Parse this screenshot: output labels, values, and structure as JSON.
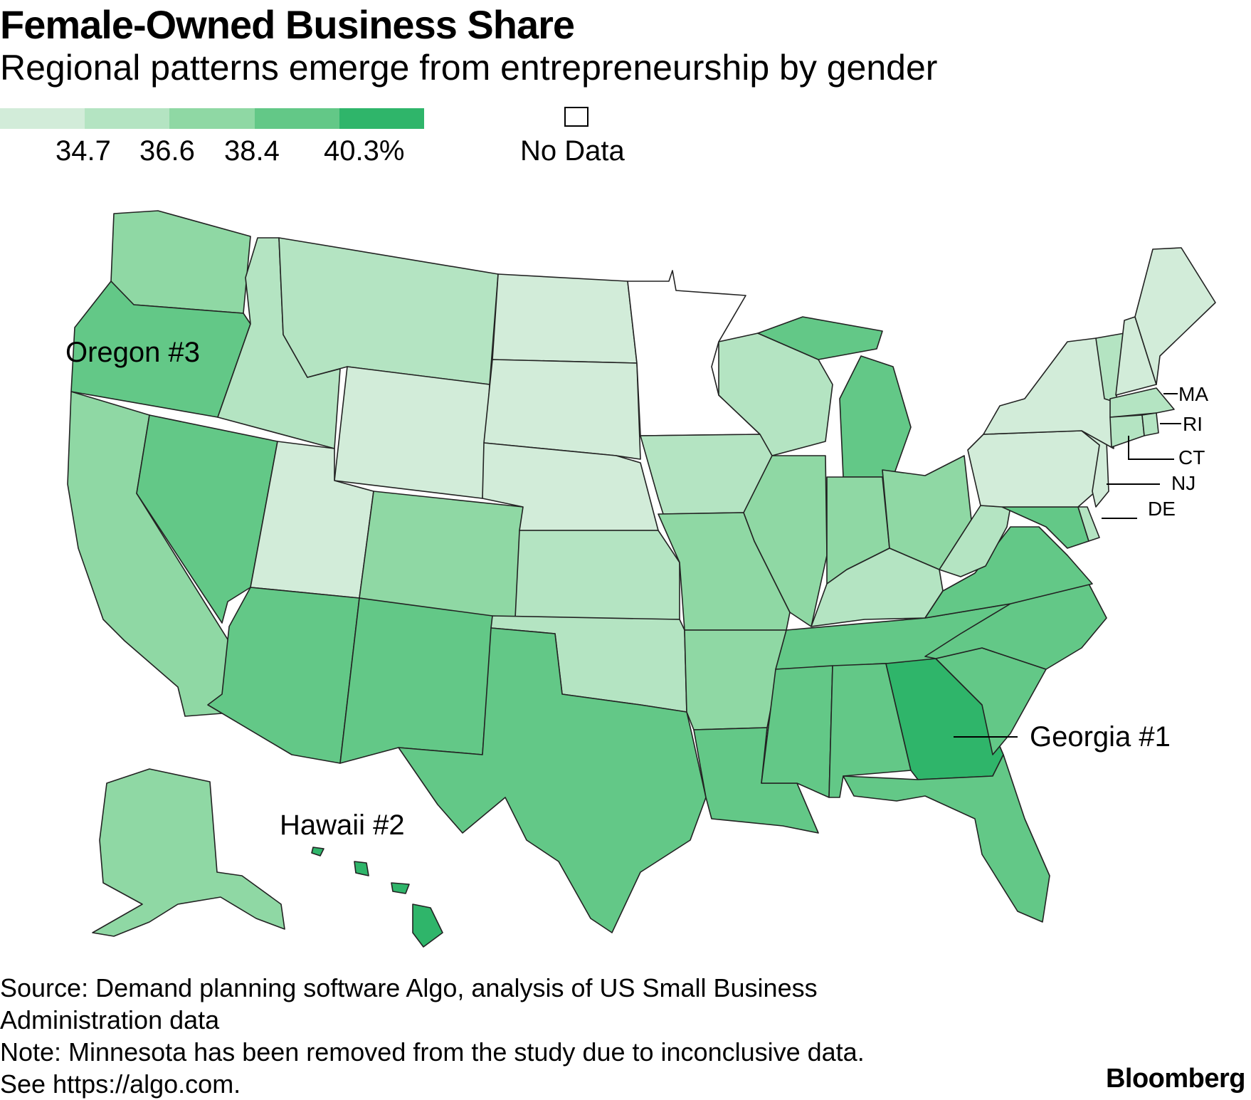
{
  "header": {
    "title": "Female-Owned Business Share",
    "subtitle": "Regional patterns emerge from entrepreneurship by gender"
  },
  "legend": {
    "colors": [
      "#d2ecd9",
      "#b4e4c2",
      "#8fd8a4",
      "#63c887",
      "#2fb56a"
    ],
    "labels": [
      "34.7",
      "36.6",
      "38.4",
      "40.3%"
    ],
    "no_data_label": "No Data",
    "no_data_color": "#ffffff"
  },
  "callouts": {
    "oregon": "Oregon #3",
    "hawaii": "Hawaii #2",
    "georgia": "Georgia #1",
    "ma": "MA",
    "ri": "RI",
    "ct": "CT",
    "nj": "NJ",
    "de": "DE"
  },
  "footer": {
    "source_line1": "Source: Demand planning software Algo, analysis of US Small Business",
    "source_line2": "Administration data",
    "note_line1": "Note: Minnesota has been removed from the study due to inconclusive data.",
    "note_line2": "See https://algo.com."
  },
  "brand": "Bloomberg",
  "chart_data": {
    "type": "choropleth",
    "metric": "female-owned business share, color bin",
    "bin_breaks": [
      34.7,
      36.6,
      38.4,
      40.3
    ],
    "bins_by_state": {
      "WA": 2,
      "OR": 3,
      "CA": 2,
      "NV": 3,
      "ID": 1,
      "MT": 1,
      "WY": 0,
      "UT": 0,
      "AZ": 3,
      "CO": 2,
      "NM": 3,
      "ND": 0,
      "SD": 0,
      "NE": 0,
      "KS": 1,
      "OK": 1,
      "TX": 3,
      "MN": "no data",
      "IA": 1,
      "MO": 2,
      "AR": 2,
      "LA": 3,
      "WI": 1,
      "IL": 2,
      "MI": 3,
      "IN": 2,
      "OH": 2,
      "KY": 1,
      "TN": 3,
      "MS": 3,
      "AL": 3,
      "GA": 4,
      "FL": 3,
      "SC": 3,
      "NC": 3,
      "VA": 3,
      "WV": 1,
      "MD": 3,
      "DE": 1,
      "PA": 0,
      "NJ": 0,
      "NY": 0,
      "CT": 1,
      "RI": 1,
      "MA": 1,
      "VT": 1,
      "NH": 0,
      "ME": 0,
      "AK": 2,
      "HI": 4
    },
    "rankings": [
      "Georgia #1",
      "Hawaii #2",
      "Oregon #3"
    ]
  }
}
